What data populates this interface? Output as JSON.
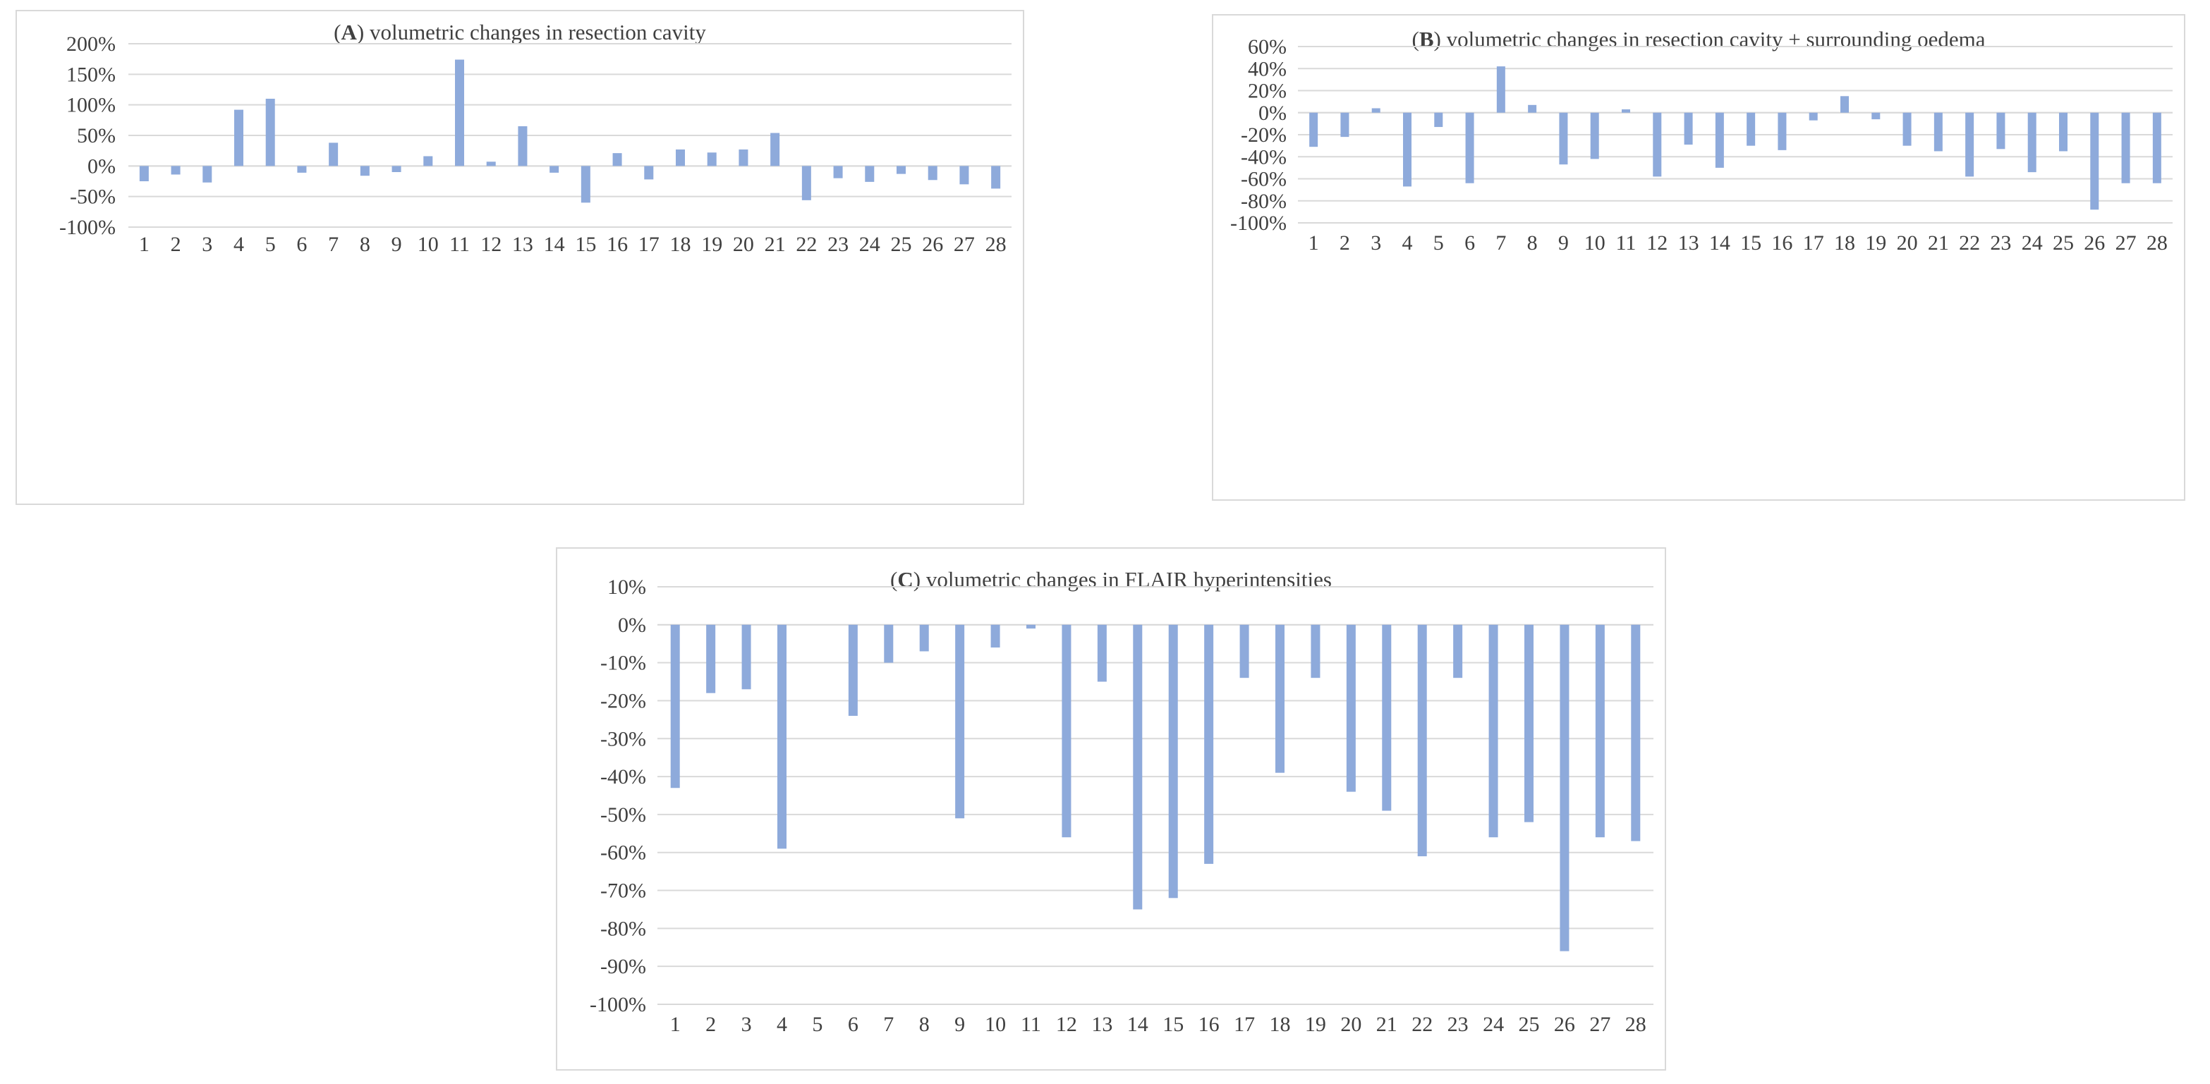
{
  "colors": {
    "bar": "#8eaadb",
    "grid": "#d9d9d9",
    "text": "#404040",
    "border": "#d9d9d9"
  },
  "chart_data": [
    {
      "type": "bar",
      "title_letter": "A",
      "title_open": "(",
      "title_close": ")",
      "title_rest": " volumetric changes in resection cavity",
      "categories": [
        "1",
        "2",
        "3",
        "4",
        "5",
        "6",
        "7",
        "8",
        "9",
        "10",
        "11",
        "12",
        "13",
        "14",
        "15",
        "16",
        "17",
        "18",
        "19",
        "20",
        "21",
        "22",
        "23",
        "24",
        "25",
        "26",
        "27",
        "28"
      ],
      "values": [
        -25,
        -14,
        -27,
        92,
        110,
        -11,
        38,
        -16,
        -10,
        16,
        174,
        7,
        65,
        -11,
        -60,
        21,
        -22,
        27,
        22,
        27,
        54,
        -56,
        -20,
        -26,
        -13,
        -23,
        -30,
        -37
      ],
      "ylim": [
        -100,
        200
      ],
      "yticks": [
        "200%",
        "150%",
        "100%",
        "50%",
        "0%",
        "-50%",
        "-100%"
      ],
      "xlabel": "",
      "ylabel": "",
      "grid": true
    },
    {
      "type": "bar",
      "title_letter": "B",
      "title_open": "(",
      "title_close": ")",
      "title_rest": " volumetric changes in resection cavity + surrounding oedema",
      "categories": [
        "1",
        "2",
        "3",
        "4",
        "5",
        "6",
        "7",
        "8",
        "9",
        "10",
        "11",
        "12",
        "13",
        "14",
        "15",
        "16",
        "17",
        "18",
        "19",
        "20",
        "21",
        "22",
        "23",
        "24",
        "25",
        "26",
        "27",
        "28"
      ],
      "values": [
        -31,
        -22,
        4,
        -67,
        -13,
        -64,
        42,
        7,
        -47,
        -42,
        3,
        -58,
        -29,
        -50,
        -30,
        -34,
        -7,
        15,
        -6,
        -30,
        -35,
        -58,
        -33,
        -54,
        -35,
        -88,
        -64,
        -64
      ],
      "ylim": [
        -100,
        60
      ],
      "yticks": [
        "60%",
        "40%",
        "20%",
        "0%",
        "-20%",
        "-40%",
        "-60%",
        "-80%",
        "-100%"
      ],
      "xlabel": "",
      "ylabel": "",
      "grid": true
    },
    {
      "type": "bar",
      "title_letter": "C",
      "title_open": "(",
      "title_close": ")",
      "title_rest": " volumetric changes in FLAIR hyperintensities",
      "categories": [
        "1",
        "2",
        "3",
        "4",
        "5",
        "6",
        "7",
        "8",
        "9",
        "10",
        "11",
        "12",
        "13",
        "14",
        "15",
        "16",
        "17",
        "18",
        "19",
        "20",
        "21",
        "22",
        "23",
        "24",
        "25",
        "26",
        "27",
        "28"
      ],
      "values": [
        -43,
        -18,
        -17,
        -59,
        0,
        -24,
        -10,
        -7,
        -51,
        -6,
        -1,
        -56,
        -15,
        -75,
        -72,
        -63,
        -14,
        -39,
        -14,
        -44,
        -49,
        -61,
        -14,
        -56,
        -52,
        -86,
        -56,
        -57
      ],
      "ylim": [
        -100,
        10
      ],
      "yticks": [
        "10%",
        "0%",
        "-10%",
        "-20%",
        "-30%",
        "-40%",
        "-50%",
        "-60%",
        "-70%",
        "-80%",
        "-90%",
        "-100%"
      ],
      "xlabel": "",
      "ylabel": "",
      "grid": true
    }
  ]
}
